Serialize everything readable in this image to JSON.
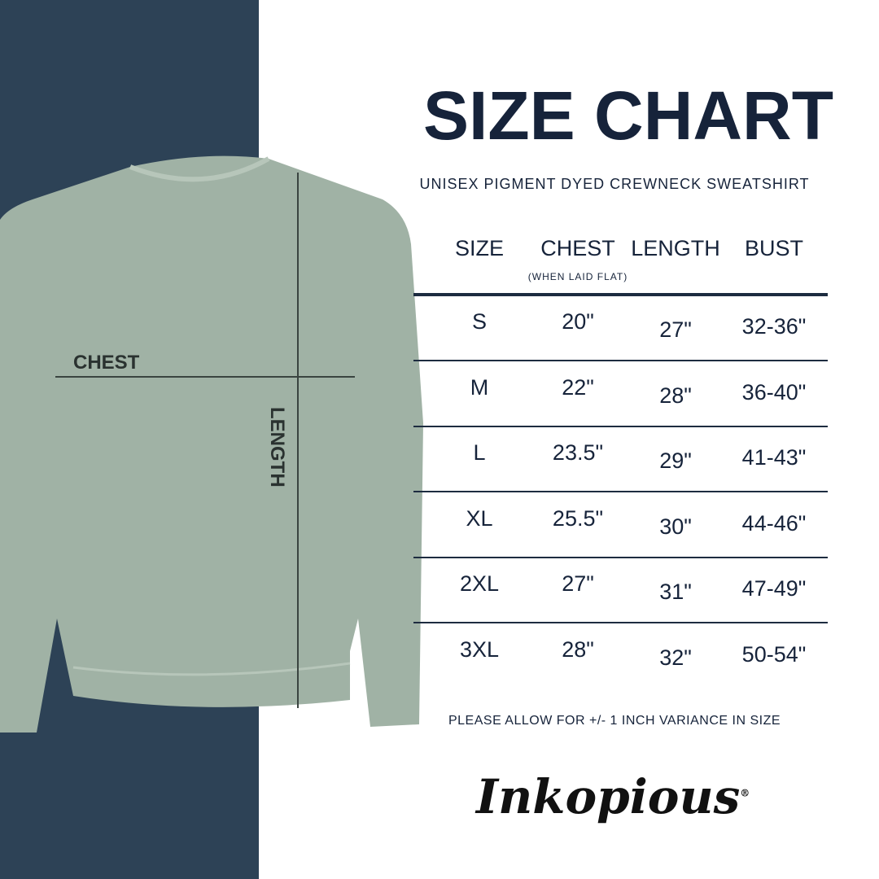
{
  "title": "SIZE CHART",
  "subtitle": "UNISEX PIGMENT DYED CREWNECK SWEATSHIRT",
  "headers": [
    "SIZE",
    "CHEST",
    "LENGTH",
    "BUST"
  ],
  "chest_note": "(WHEN LAID FLAT)",
  "rows": [
    [
      "S",
      "20\"",
      "27\"",
      "32-36\""
    ],
    [
      "M",
      "22\"",
      "28\"",
      "36-40\""
    ],
    [
      "L",
      "23.5\"",
      "29\"",
      "41-43\""
    ],
    [
      "XL",
      "25.5\"",
      "30\"",
      "44-46\""
    ],
    [
      "2XL",
      "27\"",
      "31\"",
      "47-49\""
    ],
    [
      "3XL",
      "28\"",
      "32\"",
      "50-54\""
    ]
  ],
  "note": "PLEASE ALLOW FOR +/- 1 INCH VARIANCE IN SIZE",
  "diagram": {
    "chest_label": "CHEST",
    "length_label": "LENGTH"
  },
  "brand": "Inkopious",
  "colors": {
    "panel": "#2d4256",
    "shirt": "#a0b2a5",
    "text": "#16233a"
  }
}
